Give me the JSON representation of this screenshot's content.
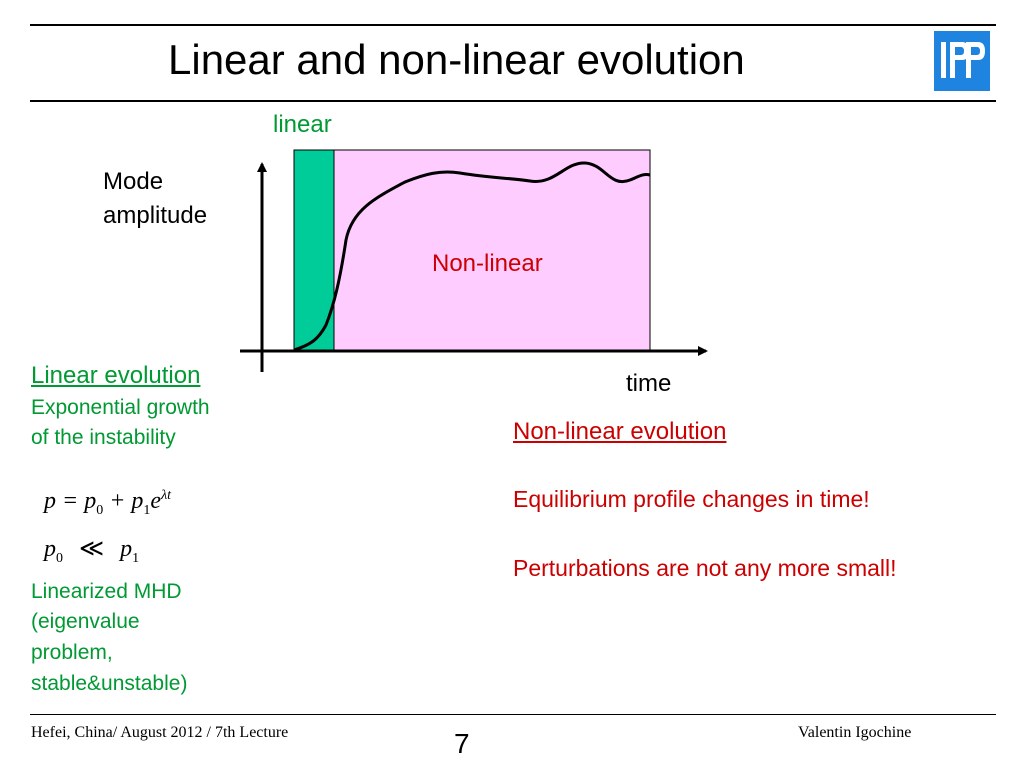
{
  "slide": {
    "title": "Linear and non-linear evolution",
    "logo_text": "IPP",
    "colors": {
      "green": "#009933",
      "red": "#cc0000",
      "logo_blue": "#1f84e0",
      "linear_band": "#00cc99",
      "nonlinear_region": "#ffccff"
    }
  },
  "diagram": {
    "linear_label": "linear",
    "y_label_line1": "Mode",
    "y_label_line2": "amplitude",
    "region_label": "Non-linear",
    "x_label": "time"
  },
  "left": {
    "heading": "Linear evolution",
    "desc_line1": "Exponential growth",
    "desc_line2": "of the instability",
    "eq1": {
      "lhs": "p",
      "p0": "p",
      "p0_sub": "0",
      "p1": "p",
      "p1_sub": "1",
      "e": "e",
      "exp": "λt"
    },
    "eq2": {
      "p0": "p",
      "p0_sub": "0",
      "rel": "≪",
      "p1": "p",
      "p1_sub": "1"
    },
    "mhd_line1": "Linearized MHD",
    "mhd_line2": "(eigenvalue",
    "mhd_line3": "problem,",
    "mhd_line4": "stable&unstable)"
  },
  "right": {
    "heading": "Non-linear evolution",
    "line1": "Equilibrium profile changes in time!",
    "line2": "Perturbations are not any more small!"
  },
  "footer": {
    "left": "Hefei, China/ August 2012 / 7th Lecture",
    "page": "7",
    "right": "Valentin Igochine"
  }
}
